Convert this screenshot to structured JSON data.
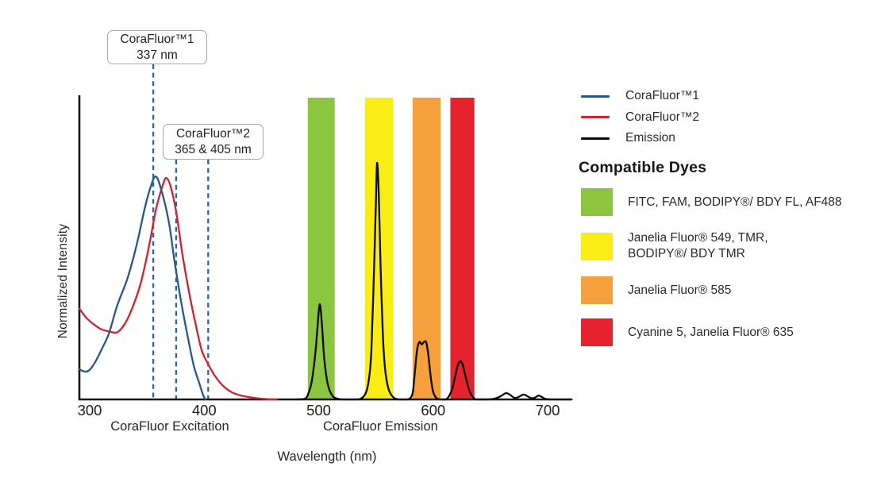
{
  "chart_data": {
    "type": "line",
    "title": "",
    "xlabel": "Wavelength (nm)",
    "ylabel": "Normalized Intensity",
    "x_ticks": [
      300,
      400,
      500,
      600,
      700
    ],
    "xlim": [
      291,
      721
    ],
    "ylim": [
      0,
      1.05
    ],
    "grid": false,
    "legend_position": "right",
    "x_section_labels": [
      {
        "text": "CoraFluor Excitation",
        "center_nm": 370
      },
      {
        "text": "CoraFluor Emission",
        "center_nm": 554
      }
    ],
    "series": [
      {
        "name": "CoraFluor™1",
        "color": "#27588c",
        "points": [
          [
            291,
            0.1
          ],
          [
            294,
            0.094
          ],
          [
            297,
            0.092
          ],
          [
            300,
            0.098
          ],
          [
            305,
            0.125
          ],
          [
            311,
            0.17
          ],
          [
            317,
            0.22
          ],
          [
            324,
            0.31
          ],
          [
            333,
            0.4
          ],
          [
            341,
            0.51
          ],
          [
            348,
            0.63
          ],
          [
            353,
            0.7
          ],
          [
            357.5,
            0.737
          ],
          [
            362,
            0.7
          ],
          [
            369,
            0.59
          ],
          [
            374,
            0.46
          ],
          [
            380,
            0.32
          ],
          [
            386,
            0.2
          ],
          [
            391,
            0.11
          ],
          [
            396,
            0.05
          ],
          [
            399,
            0.015
          ],
          [
            401,
            0.0
          ]
        ]
      },
      {
        "name": "CoraFluor™2",
        "color": "#d32030",
        "points": [
          [
            291,
            0.3
          ],
          [
            297,
            0.27
          ],
          [
            303,
            0.25
          ],
          [
            310,
            0.232
          ],
          [
            317,
            0.225
          ],
          [
            324,
            0.222
          ],
          [
            331,
            0.252
          ],
          [
            338,
            0.31
          ],
          [
            345,
            0.39
          ],
          [
            352,
            0.51
          ],
          [
            358,
            0.63
          ],
          [
            364,
            0.71
          ],
          [
            367,
            0.732
          ],
          [
            371,
            0.7
          ],
          [
            376,
            0.61
          ],
          [
            381,
            0.48
          ],
          [
            387,
            0.35
          ],
          [
            393,
            0.24
          ],
          [
            398,
            0.16
          ],
          [
            403,
            0.12
          ],
          [
            409,
            0.08
          ],
          [
            416,
            0.047
          ],
          [
            423,
            0.026
          ],
          [
            432,
            0.013
          ],
          [
            444,
            0.005
          ],
          [
            455,
            0.001
          ],
          [
            463,
            0.0
          ]
        ]
      },
      {
        "name": "Emission",
        "color": "#0b0b0b",
        "points": [
          [
            480,
            0
          ],
          [
            488,
            0.002
          ],
          [
            491,
            0.02
          ],
          [
            494,
            0.06
          ],
          [
            497,
            0.15
          ],
          [
            499,
            0.24
          ],
          [
            501,
            0.315
          ],
          [
            503,
            0.24
          ],
          [
            505,
            0.13
          ],
          [
            508,
            0.05
          ],
          [
            512,
            0.012
          ],
          [
            517,
            0.002
          ],
          [
            522,
            0
          ],
          [
            535,
            0
          ],
          [
            541,
            0.02
          ],
          [
            544,
            0.07
          ],
          [
            546,
            0.16
          ],
          [
            548,
            0.38
          ],
          [
            550,
            0.65
          ],
          [
            551,
            0.782
          ],
          [
            552.5,
            0.68
          ],
          [
            554,
            0.45
          ],
          [
            556,
            0.22
          ],
          [
            558,
            0.1
          ],
          [
            561,
            0.035
          ],
          [
            565,
            0.008
          ],
          [
            570,
            0
          ],
          [
            578,
            0
          ],
          [
            582,
            0.02
          ],
          [
            584,
            0.09
          ],
          [
            586,
            0.165
          ],
          [
            588,
            0.19
          ],
          [
            590,
            0.182
          ],
          [
            592,
            0.19
          ],
          [
            594,
            0.188
          ],
          [
            596,
            0.14
          ],
          [
            598,
            0.07
          ],
          [
            600,
            0.025
          ],
          [
            603,
            0.004
          ],
          [
            607,
            0
          ],
          [
            611,
            0
          ],
          [
            614,
            0.012
          ],
          [
            617,
            0.04
          ],
          [
            620,
            0.09
          ],
          [
            622,
            0.118
          ],
          [
            624,
            0.126
          ],
          [
            626,
            0.112
          ],
          [
            629,
            0.065
          ],
          [
            632,
            0.025
          ],
          [
            635,
            0.007
          ],
          [
            638,
            0
          ],
          [
            648,
            0
          ],
          [
            655,
            0.004
          ],
          [
            660,
            0.013
          ],
          [
            664,
            0.021
          ],
          [
            668,
            0.013
          ],
          [
            671,
            0.005
          ],
          [
            674,
            0.007
          ],
          [
            679,
            0.016
          ],
          [
            683,
            0.009
          ],
          [
            686,
            0.004
          ],
          [
            689,
            0.006
          ],
          [
            692,
            0.013
          ],
          [
            695,
            0.008
          ],
          [
            698,
            0.002
          ],
          [
            703,
            0
          ],
          [
            721,
            0
          ]
        ]
      }
    ],
    "bands": [
      {
        "name": "FITC filter band",
        "color": "#8cc540",
        "from_nm": 490.5,
        "to_nm": 514
      },
      {
        "name": "TMR filter band",
        "color": "#faec15",
        "from_nm": 540.5,
        "to_nm": 565
      },
      {
        "name": "JF585 filter band",
        "color": "#f5a03c",
        "from_nm": 582,
        "to_nm": 606.5
      },
      {
        "name": "Cy5 filter band",
        "color": "#e6222c",
        "from_nm": 615,
        "to_nm": 636
      }
    ],
    "markers": [
      {
        "label": "337 nm",
        "drawn_nm": 355.5
      },
      {
        "label": "365 nm",
        "drawn_nm": 375.5
      },
      {
        "label": "405 nm",
        "drawn_nm": 403.5
      }
    ],
    "marker_color": "#2e639c"
  },
  "annotations": [
    {
      "line1": "CoraFluor™1",
      "line2": "337 nm"
    },
    {
      "line1": "CoraFluor™2",
      "line2": "365 & 405 nm"
    }
  ],
  "legend": {
    "items": [
      {
        "label": "CoraFluor™1",
        "color": "#27588c"
      },
      {
        "label": "CoraFluor™2",
        "color": "#d32030"
      },
      {
        "label": "Emission",
        "color": "#0b0b0b"
      }
    ]
  },
  "compatible_dyes": {
    "heading": "Compatible Dyes",
    "items": [
      {
        "color": "#8cc540",
        "label": "FITC, FAM, BODIPY®/ BDY FL, AF488"
      },
      {
        "color": "#faec15",
        "label": "Janelia Fluor® 549, TMR,\nBODIPY®/ BDY TMR"
      },
      {
        "color": "#f5a03c",
        "label": "Janelia Fluor® 585"
      },
      {
        "color": "#e6222c",
        "label": "Cyanine 5, Janelia Fluor® 635"
      }
    ]
  }
}
